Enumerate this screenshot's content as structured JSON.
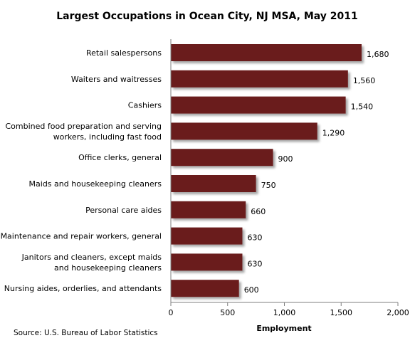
{
  "chart_data": {
    "type": "bar",
    "orientation": "horizontal",
    "title": "Largest Occupations in Ocean City, NJ MSA, May 2011",
    "xlabel": "Employment",
    "ylabel": "",
    "categories": [
      [
        "Retail salespersons"
      ],
      [
        "Waiters and  waitresses"
      ],
      [
        "Cashiers"
      ],
      [
        "Combined food preparation and serving",
        "workers, including fast food"
      ],
      [
        "Office clerks, general"
      ],
      [
        "Maids and housekeeping cleaners"
      ],
      [
        "Personal care aides"
      ],
      [
        "Maintenance and repair workers, general"
      ],
      [
        "Janitors and cleaners, except maids",
        "and housekeeping cleaners"
      ],
      [
        "Nursing aides, orderlies, and attendants"
      ]
    ],
    "values": [
      1680,
      1560,
      1540,
      1290,
      900,
      750,
      660,
      630,
      630,
      600
    ],
    "value_labels": [
      "1,680",
      "1,560",
      "1,540",
      "1,290",
      "900",
      "750",
      "660",
      "630",
      "630",
      "600"
    ],
    "xlim": [
      0,
      2000
    ],
    "xticks": [
      0,
      500,
      1000,
      1500,
      2000
    ],
    "xtick_labels": [
      "0",
      "500",
      "1,000",
      "1,500",
      "2,000"
    ],
    "grid": false,
    "legend": "none",
    "bar_color": "#6b1f1f",
    "source": "Source:  U.S. Bureau of Labor Statistics"
  }
}
